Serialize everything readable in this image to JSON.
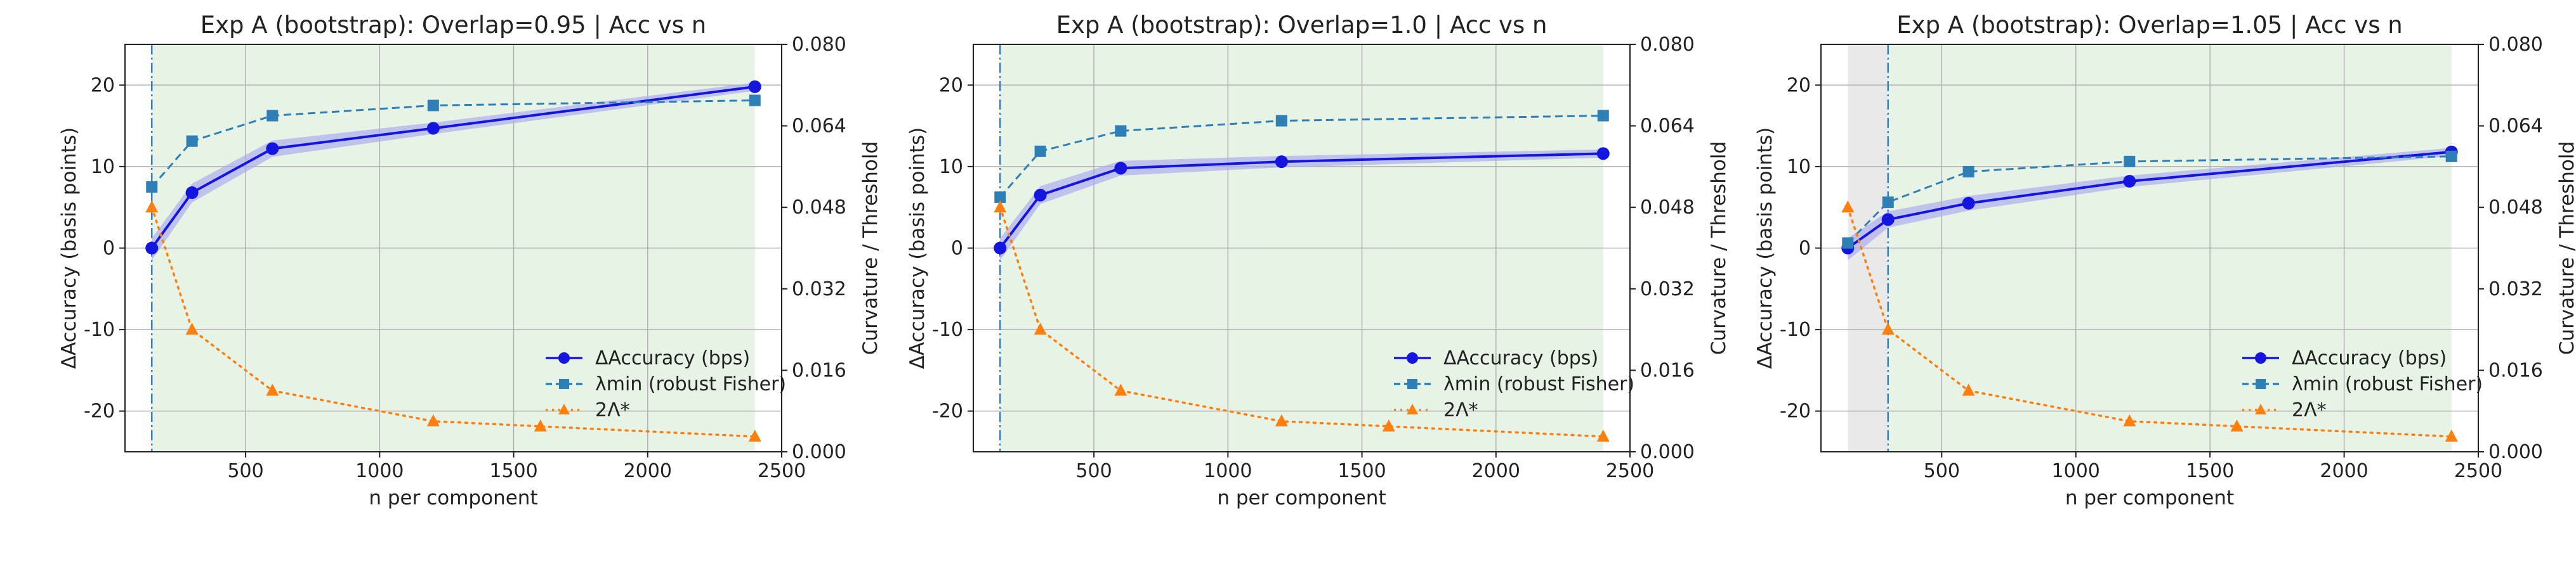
{
  "figure": {
    "colors": {
      "accuracy": "#1515e0",
      "accuracy_band": "#a9a9ee",
      "lambda": "#2e7fb6",
      "threshold": "#ff7f0e",
      "transition": "#3a7fc1",
      "stable_region": "#e7f3e5",
      "unstable_region": "#e9e9e9"
    }
  },
  "chart_data": [
    {
      "type": "line",
      "title": "Exp A (bootstrap): Overlap=0.95 | Acc vs n",
      "xlabel": "n per component",
      "ylabel": "ΔAccuracy (basis points)",
      "y2label": "Curvature / Threshold",
      "xlim": [
        50,
        2500
      ],
      "ylim": [
        -25,
        25
      ],
      "y2lim": [
        0.0,
        0.08
      ],
      "xticks": [
        500,
        1000,
        1500,
        2000,
        2500
      ],
      "yticks": [
        -20,
        -10,
        0,
        10,
        20
      ],
      "y2ticks": [
        "0.000",
        "0.016",
        "0.032",
        "0.048",
        "0.064",
        "0.080"
      ],
      "grid": true,
      "legend_position": "lower-right",
      "transition_n": 150,
      "shaded_regions": [
        {
          "kind": "stable",
          "from": 150,
          "to": 2400
        }
      ],
      "series": [
        {
          "name": "ΔAccuracy (bps)",
          "axis": "left",
          "style": "solid-circle",
          "x": [
            150,
            300,
            600,
            1200,
            2400
          ],
          "values": [
            0.0,
            6.8,
            12.2,
            14.7,
            19.8
          ],
          "band_lower": [
            -1.5,
            5.6,
            11.2,
            14.0,
            19.3
          ],
          "band_upper": [
            1.2,
            7.9,
            13.2,
            15.4,
            20.3
          ]
        },
        {
          "name": "λmin (robust Fisher)",
          "axis": "right",
          "style": "dashed-square",
          "x": [
            150,
            300,
            600,
            1200,
            2400
          ],
          "values": [
            0.052,
            0.061,
            0.066,
            0.068,
            0.069
          ]
        },
        {
          "name": "2Λ*",
          "axis": "right",
          "style": "dotted-triangle",
          "x": [
            150,
            300,
            600,
            1200,
            1600,
            2400
          ],
          "values": [
            0.048,
            0.024,
            0.012,
            0.006,
            0.005,
            0.003
          ]
        }
      ]
    },
    {
      "type": "line",
      "title": "Exp A (bootstrap): Overlap=1.0 | Acc vs n",
      "xlabel": "n per component",
      "ylabel": "ΔAccuracy (basis points)",
      "y2label": "Curvature / Threshold",
      "xlim": [
        50,
        2500
      ],
      "ylim": [
        -25,
        25
      ],
      "y2lim": [
        0.0,
        0.08
      ],
      "xticks": [
        500,
        1000,
        1500,
        2000,
        2500
      ],
      "yticks": [
        -20,
        -10,
        0,
        10,
        20
      ],
      "y2ticks": [
        "0.000",
        "0.016",
        "0.032",
        "0.048",
        "0.064",
        "0.080"
      ],
      "grid": true,
      "legend_position": "lower-right",
      "transition_n": 150,
      "shaded_regions": [
        {
          "kind": "stable",
          "from": 150,
          "to": 2400
        }
      ],
      "series": [
        {
          "name": "ΔAccuracy (bps)",
          "axis": "left",
          "style": "solid-circle",
          "x": [
            150,
            300,
            600,
            1200,
            2400
          ],
          "values": [
            0.0,
            6.5,
            9.8,
            10.6,
            11.6
          ],
          "band_lower": [
            -1.5,
            5.4,
            8.9,
            9.9,
            11.1
          ],
          "band_upper": [
            1.2,
            7.6,
            10.7,
            11.3,
            12.1
          ]
        },
        {
          "name": "λmin (robust Fisher)",
          "axis": "right",
          "style": "dashed-square",
          "x": [
            150,
            300,
            600,
            1200,
            2400
          ],
          "values": [
            0.05,
            0.059,
            0.063,
            0.065,
            0.066
          ]
        },
        {
          "name": "2Λ*",
          "axis": "right",
          "style": "dotted-triangle",
          "x": [
            150,
            300,
            600,
            1200,
            1600,
            2400
          ],
          "values": [
            0.048,
            0.024,
            0.012,
            0.006,
            0.005,
            0.003
          ]
        }
      ]
    },
    {
      "type": "line",
      "title": "Exp A (bootstrap): Overlap=1.05 | Acc vs n",
      "xlabel": "n per component",
      "ylabel": "ΔAccuracy (basis points)",
      "y2label": "Curvature / Threshold",
      "xlim": [
        50,
        2500
      ],
      "ylim": [
        -25,
        25
      ],
      "y2lim": [
        0.0,
        0.08
      ],
      "xticks": [
        500,
        1000,
        1500,
        2000,
        2500
      ],
      "yticks": [
        -20,
        -10,
        0,
        10,
        20
      ],
      "y2ticks": [
        "0.000",
        "0.016",
        "0.032",
        "0.048",
        "0.064",
        "0.080"
      ],
      "grid": true,
      "legend_position": "lower-right",
      "transition_n": 300,
      "shaded_regions": [
        {
          "kind": "unstable",
          "from": 150,
          "to": 300
        },
        {
          "kind": "stable",
          "from": 300,
          "to": 2400
        }
      ],
      "series": [
        {
          "name": "ΔAccuracy (bps)",
          "axis": "left",
          "style": "solid-circle",
          "x": [
            150,
            300,
            600,
            1200,
            2400
          ],
          "values": [
            0.0,
            3.5,
            5.5,
            8.2,
            11.8
          ],
          "band_lower": [
            -1.5,
            2.5,
            4.6,
            7.5,
            11.3
          ],
          "band_upper": [
            1.2,
            4.5,
            6.4,
            8.9,
            12.3
          ]
        },
        {
          "name": "λmin (robust Fisher)",
          "axis": "right",
          "style": "dashed-square",
          "x": [
            150,
            300,
            600,
            1200,
            2400
          ],
          "values": [
            0.041,
            0.049,
            0.055,
            0.057,
            0.058
          ]
        },
        {
          "name": "2Λ*",
          "axis": "right",
          "style": "dotted-triangle",
          "x": [
            150,
            300,
            600,
            1200,
            1600,
            2400
          ],
          "values": [
            0.048,
            0.024,
            0.012,
            0.006,
            0.005,
            0.003
          ]
        }
      ]
    }
  ]
}
